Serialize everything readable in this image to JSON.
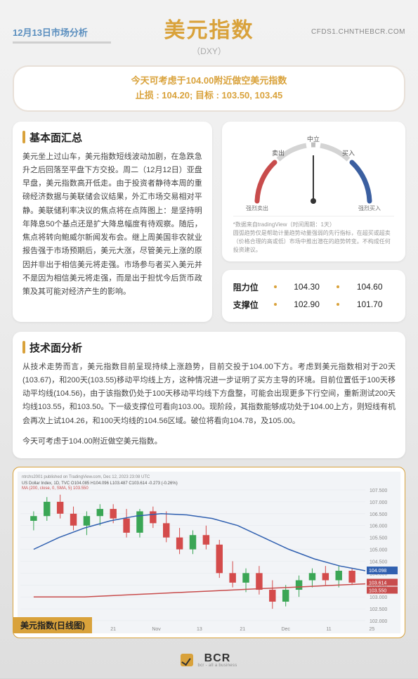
{
  "header": {
    "date": "12月13日市场分析",
    "title": "美元指数",
    "subtitle": "（DXY）",
    "site": "CFDS1.CHNTHEBCR.COM"
  },
  "tip": {
    "line1": "今天可考虑于104.00附近做空美元指数",
    "line2": "止损 : 104.20; 目标 : 103.50, 103.45"
  },
  "fundamental": {
    "title": "基本面汇总",
    "body": "美元坐上过山车，美元指数短线波动加剧，在急跌急升之后回落至平盘下方交投。周二（12月12日）亚盘早盘，美元指数高开低走。由于投资者静待本周的重磅经济数据与美联储会议结果，外汇市场交易相对平静。美联储利率决议的焦点将在点阵图上：是坚持明年降息50个基点还是扩大降息幅度有待观察。随后，焦点将转向鲍威尔新闻发布会。继上周美国非农就业报告强于市场预期后，美元大涨，尽管美元上涨的原因并非出于相信美元将走强。市场参与者买入美元并不是因为相信美元将走强，而是出于担忧今后货币政策及其可能对经济产生的影响。"
  },
  "gauge": {
    "labels": {
      "strong_sell": "强烈卖出",
      "sell": "卖出",
      "neutral": "中立",
      "buy": "买入",
      "strong_buy": "强烈买入"
    },
    "note1": "*数据来自tradingView（时间周期：1天）",
    "note2": "圆弧趋势仅是帮助计量趋势动量强弱的先行指标，在超买或超卖（价格合理的高或低）市场中推出潜在的趋势转变。不构成任何投资建议。",
    "colors": {
      "sell": "#c84c4c",
      "neutral": "#bfbfbf",
      "buy": "#3b5fa0"
    }
  },
  "levels": {
    "resistance_label": "阻力位",
    "support_label": "支撑位",
    "resistance": [
      "104.30",
      "104.60"
    ],
    "support": [
      "102.90",
      "101.70"
    ]
  },
  "technical": {
    "title": "技术面分析",
    "body": "从技术走势而言，美元指数目前呈现持续上涨趋势，目前交投于104.00下方。考虑到美元指数相对于20天(103.67)，和200天(103.55)移动平均线上方，这种情况进一步证明了买方主导的环境。目前位置低于100天移动平均线(104.56)，由于该指数仍处于100天移动平均线下方盘整，可能会出现更多下行空间，重新测试200天均线103.55，和103.50。下一级支撑位可看向103.00。现阶段，其指数能够成功处于104.00上方，则短线有机会再次上试104.26，和100天均线的104.56区域。破位将看向104.78，及105.00。",
    "body2": "今天可考虑于104.00附近做空美元指数。"
  },
  "chart": {
    "caption": "美元指数(日线图)",
    "source_line": "ntrchs2001 published on TradingView.com, Dec 12, 2023 23:08 UTC",
    "ticker_line1": "US Dollar Index, 1D, TVC  O104.085 H104.096 L103.487 C103.614 -0.273 (-0.26%)",
    "ticker_line2": "MA (200, close, 0, SMA, 5) 103.550",
    "ticker_line3": "MA (50, close, 0, SMA, 5)",
    "y_axis": [
      "107.500",
      "107.000",
      "106.500",
      "106.000",
      "105.500",
      "105.000",
      "104.500",
      "104.000",
      "103.500",
      "103.000",
      "102.500",
      "102.000"
    ],
    "y_marker_blue": "104.098",
    "y_marker_red": [
      "103.614",
      "103.550"
    ],
    "x_axis": [
      "Oct",
      "13",
      "21",
      "Nov",
      "13",
      "21",
      "Dec",
      "11",
      "25"
    ],
    "colors": {
      "background": "#f2f4f7",
      "grid": "#e4e7ec",
      "ma200_line": "#c84c4c",
      "ma50_line": "#3060b0",
      "up_candle": "#3aa655",
      "down_candle": "#d44b4b",
      "blue_marker_bg": "#3060b0",
      "red_marker_bg": "#c84c4c"
    },
    "ma200_points": [
      103.0,
      103.0,
      103.0,
      103.05,
      103.1,
      103.15,
      103.2,
      103.25,
      103.3,
      103.35,
      103.4,
      103.45,
      103.5,
      103.55
    ],
    "ma50_points": [
      105.0,
      105.5,
      105.9,
      106.2,
      106.4,
      106.5,
      106.45,
      106.3,
      106.0,
      105.5,
      105.0,
      104.6,
      104.3,
      104.1
    ],
    "candles": [
      {
        "o": 106.2,
        "h": 106.6,
        "l": 105.8,
        "c": 106.4,
        "dir": "up"
      },
      {
        "o": 106.4,
        "h": 107.2,
        "l": 106.2,
        "c": 107.0,
        "dir": "up"
      },
      {
        "o": 107.0,
        "h": 107.3,
        "l": 106.3,
        "c": 106.5,
        "dir": "down"
      },
      {
        "o": 106.5,
        "h": 106.8,
        "l": 105.8,
        "c": 106.0,
        "dir": "down"
      },
      {
        "o": 106.0,
        "h": 106.6,
        "l": 105.6,
        "c": 106.4,
        "dir": "up"
      },
      {
        "o": 106.4,
        "h": 106.9,
        "l": 106.0,
        "c": 106.7,
        "dir": "up"
      },
      {
        "o": 106.7,
        "h": 106.9,
        "l": 106.1,
        "c": 106.3,
        "dir": "down"
      },
      {
        "o": 106.3,
        "h": 106.7,
        "l": 105.5,
        "c": 105.7,
        "dir": "down"
      },
      {
        "o": 105.7,
        "h": 106.7,
        "l": 105.5,
        "c": 106.6,
        "dir": "up"
      },
      {
        "o": 106.6,
        "h": 106.8,
        "l": 105.9,
        "c": 106.1,
        "dir": "down"
      },
      {
        "o": 106.1,
        "h": 106.6,
        "l": 105.3,
        "c": 105.5,
        "dir": "down"
      },
      {
        "o": 105.5,
        "h": 105.9,
        "l": 104.8,
        "c": 105.0,
        "dir": "down"
      },
      {
        "o": 105.0,
        "h": 105.8,
        "l": 104.8,
        "c": 105.6,
        "dir": "up"
      },
      {
        "o": 105.6,
        "h": 106.0,
        "l": 105.0,
        "c": 105.2,
        "dir": "down"
      },
      {
        "o": 105.2,
        "h": 105.4,
        "l": 103.8,
        "c": 104.0,
        "dir": "down"
      },
      {
        "o": 104.0,
        "h": 104.5,
        "l": 103.4,
        "c": 103.6,
        "dir": "down"
      },
      {
        "o": 103.6,
        "h": 104.2,
        "l": 103.2,
        "c": 104.0,
        "dir": "up"
      },
      {
        "o": 104.0,
        "h": 104.3,
        "l": 103.1,
        "c": 103.3,
        "dir": "down"
      },
      {
        "o": 103.3,
        "h": 103.7,
        "l": 102.5,
        "c": 102.8,
        "dir": "down"
      },
      {
        "o": 102.8,
        "h": 103.5,
        "l": 102.6,
        "c": 103.3,
        "dir": "up"
      },
      {
        "o": 103.3,
        "h": 103.9,
        "l": 103.0,
        "c": 103.7,
        "dir": "up"
      },
      {
        "o": 103.7,
        "h": 104.2,
        "l": 103.4,
        "c": 104.0,
        "dir": "up"
      },
      {
        "o": 104.0,
        "h": 104.3,
        "l": 103.5,
        "c": 103.7,
        "dir": "down"
      },
      {
        "o": 103.7,
        "h": 104.3,
        "l": 103.4,
        "c": 104.1,
        "dir": "up"
      },
      {
        "o": 104.1,
        "h": 104.2,
        "l": 103.5,
        "c": 103.6,
        "dir": "down"
      }
    ]
  },
  "footer": {
    "brand": "BCR",
    "sub": "bcr - all a business"
  }
}
